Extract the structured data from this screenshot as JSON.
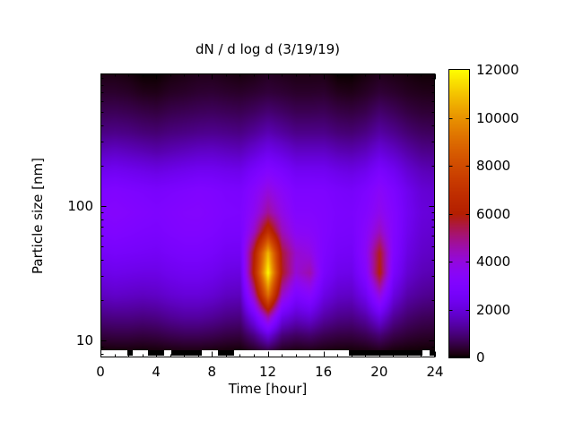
{
  "title": "dN / d log d (3/19/19)",
  "x_axis": {
    "label": "Time [hour]",
    "tick_labels": [
      "0",
      "4",
      "8",
      "12",
      "16",
      "20",
      "24"
    ],
    "tick_values": [
      0,
      4,
      8,
      12,
      16,
      20,
      24
    ],
    "minor_tick_step_hours": 1,
    "range_hours": [
      0,
      24
    ]
  },
  "y_axis": {
    "label": "Particle size [nm]",
    "scale": "log",
    "tick_labels": [
      "10",
      "100"
    ],
    "tick_values": [
      10,
      100
    ],
    "range_nm": [
      7.4,
      970
    ]
  },
  "colorbar": {
    "tick_labels": [
      "0",
      "2000",
      "4000",
      "6000",
      "8000",
      "10000",
      "12000"
    ],
    "tick_values": [
      0,
      2000,
      4000,
      6000,
      8000,
      10000,
      12000
    ],
    "range": [
      0,
      12000
    ],
    "palette_name": "gnuplot-pm3d-black-purple-red-yellow",
    "palette_key_colors": [
      "#000000",
      "#6801dd",
      "#a312a3",
      "#b42000",
      "#d95f00",
      "#ffff00"
    ]
  },
  "chart_data": {
    "type": "heatmap",
    "xlabel": "Time [hour]",
    "ylabel": "Particle size [nm]",
    "title": "dN / d log d (3/19/19)",
    "value_range": [
      0,
      12000
    ],
    "x_hours": [
      0,
      1,
      2,
      3,
      4,
      5,
      6,
      7,
      8,
      9,
      10,
      11,
      12,
      13,
      14,
      15,
      16,
      17,
      18,
      19,
      20,
      21,
      22,
      23,
      24
    ],
    "y_sizes_nm": [
      970,
      700,
      500,
      350,
      250,
      180,
      130,
      90,
      65,
      45,
      32,
      22,
      15,
      11,
      8.5
    ],
    "values": [
      [
        150,
        150,
        100,
        0,
        0,
        100,
        150,
        200,
        200,
        150,
        100,
        150,
        250,
        200,
        150,
        150,
        150,
        0,
        0,
        100,
        200,
        150,
        100,
        50,
        50
      ],
      [
        350,
        350,
        300,
        200,
        180,
        280,
        320,
        380,
        400,
        350,
        320,
        380,
        450,
        400,
        330,
        330,
        350,
        220,
        180,
        280,
        420,
        350,
        250,
        200,
        180
      ],
      [
        650,
        680,
        630,
        550,
        500,
        600,
        650,
        700,
        730,
        680,
        640,
        750,
        900,
        780,
        650,
        650,
        680,
        550,
        500,
        600,
        850,
        700,
        520,
        420,
        400
      ],
      [
        1050,
        1100,
        1050,
        950,
        900,
        1000,
        1050,
        1120,
        1150,
        1100,
        1050,
        1250,
        1500,
        1300,
        1100,
        1100,
        1100,
        950,
        900,
        1050,
        1350,
        1150,
        900,
        750,
        700
      ],
      [
        1650,
        1750,
        1650,
        1550,
        1450,
        1550,
        1650,
        1750,
        1780,
        1680,
        1620,
        1950,
        2300,
        2050,
        1750,
        1750,
        1750,
        1550,
        1480,
        1650,
        2050,
        1750,
        1400,
        1150,
        1100
      ],
      [
        2350,
        2450,
        2350,
        2250,
        2150,
        2250,
        2350,
        2450,
        2430,
        2330,
        2280,
        2750,
        3200,
        2850,
        2450,
        2450,
        2430,
        2230,
        2130,
        2330,
        2850,
        2430,
        1900,
        1600,
        1500
      ],
      [
        2950,
        3050,
        2950,
        2850,
        2750,
        2850,
        2950,
        3050,
        2980,
        2830,
        2780,
        3350,
        4000,
        3450,
        2950,
        2950,
        2930,
        2730,
        2630,
        2930,
        3450,
        2930,
        2300,
        1900,
        1800
      ],
      [
        3150,
        3250,
        3150,
        3050,
        2950,
        3050,
        3150,
        3180,
        3080,
        2930,
        2880,
        3650,
        4800,
        3850,
        3150,
        3150,
        3030,
        2830,
        2780,
        3130,
        3750,
        3130,
        2400,
        2000,
        1900
      ],
      [
        2950,
        3050,
        2950,
        2850,
        2800,
        2950,
        3050,
        3050,
        2950,
        2750,
        2730,
        4300,
        6800,
        4450,
        3500,
        3400,
        3050,
        2750,
        2700,
        3350,
        4400,
        3150,
        2300,
        1900,
        1800
      ],
      [
        2550,
        2650,
        2600,
        2550,
        2500,
        2650,
        2750,
        2750,
        2650,
        2450,
        2430,
        6000,
        10800,
        5600,
        4200,
        3900,
        2950,
        2550,
        2500,
        3500,
        5800,
        3050,
        2100,
        1750,
        1650
      ],
      [
        2150,
        2250,
        2200,
        2150,
        2150,
        2300,
        2400,
        2400,
        2300,
        2100,
        2050,
        6300,
        12000,
        5800,
        4100,
        4600,
        2750,
        2250,
        2200,
        3200,
        6000,
        2750,
        1850,
        1550,
        1450
      ],
      [
        1650,
        1750,
        1700,
        1650,
        1700,
        1850,
        1950,
        1950,
        1850,
        1650,
        1600,
        4600,
        9200,
        4300,
        2900,
        3300,
        2150,
        1750,
        1700,
        2350,
        4000,
        2050,
        1400,
        1200,
        1100
      ],
      [
        1000,
        1050,
        1050,
        1000,
        1050,
        1200,
        1300,
        1300,
        1200,
        1050,
        1000,
        2400,
        4600,
        2200,
        1700,
        1900,
        1350,
        1100,
        1050,
        1350,
        2100,
        1200,
        850,
        700,
        650
      ],
      [
        480,
        520,
        520,
        480,
        520,
        620,
        680,
        680,
        620,
        520,
        480,
        1050,
        2000,
        950,
        750,
        850,
        630,
        520,
        500,
        630,
        900,
        570,
        420,
        340,
        310
      ],
      [
        60,
        90,
        90,
        70,
        90,
        130,
        160,
        160,
        130,
        90,
        70,
        270,
        550,
        240,
        160,
        190,
        140,
        100,
        90,
        130,
        220,
        110,
        70,
        50,
        40
      ]
    ],
    "bottom_edge_black_segments_hours": [
      [
        1.9,
        2.3
      ],
      [
        3.4,
        4.6
      ],
      [
        5.1,
        7.3
      ],
      [
        8.4,
        9.6
      ],
      [
        17.8,
        23.1
      ],
      [
        23.6,
        24.0
      ]
    ],
    "notes": "White strip at bottom edge = missing data below ~8.5 nm; black segments = near-zero data present"
  }
}
